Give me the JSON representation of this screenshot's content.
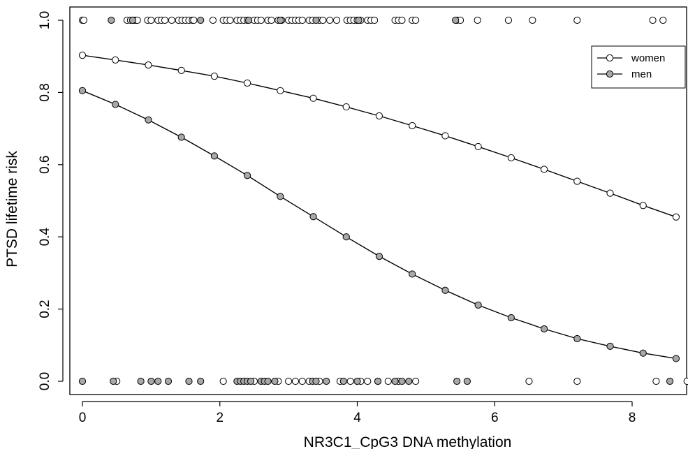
{
  "chart_data": {
    "type": "scatter",
    "title": "",
    "xlabel": "NR3C1_CpG3 DNA methylation",
    "ylabel": "PTSD lifetime risk",
    "xlim": [
      -0.3,
      8.8
    ],
    "ylim": [
      0,
      1
    ],
    "x_ticks": [
      "0",
      "2",
      "4",
      "6",
      "8"
    ],
    "y_ticks": [
      "0.0",
      "0.2",
      "0.4",
      "0.6",
      "0.8",
      "1.0"
    ],
    "grid": false,
    "legend_position": "top-right",
    "legend": [
      {
        "label": "women",
        "fill": "#ffffff"
      },
      {
        "label": "men",
        "fill": "#a8a8a8"
      }
    ],
    "fitted_curves": [
      {
        "name": "women",
        "fill": "#ffffff",
        "x": [
          0,
          0.48,
          0.96,
          1.44,
          1.92,
          2.4,
          2.88,
          3.36,
          3.84,
          4.32,
          4.8,
          5.28,
          5.76,
          6.24,
          6.72,
          7.2,
          7.68,
          8.16,
          8.64
        ],
        "y": [
          0.903,
          0.89,
          0.876,
          0.861,
          0.845,
          0.826,
          0.805,
          0.784,
          0.76,
          0.735,
          0.708,
          0.68,
          0.65,
          0.619,
          0.587,
          0.554,
          0.521,
          0.487,
          0.455
        ]
      },
      {
        "name": "men",
        "fill": "#a8a8a8",
        "x": [
          0,
          0.48,
          0.96,
          1.44,
          1.92,
          2.4,
          2.88,
          3.36,
          3.84,
          4.32,
          4.8,
          5.28,
          5.76,
          6.24,
          6.72,
          7.2,
          7.68,
          8.16,
          8.64
        ],
        "y": [
          0.805,
          0.767,
          0.724,
          0.676,
          0.624,
          0.57,
          0.512,
          0.456,
          0.4,
          0.346,
          0.297,
          0.252,
          0.211,
          0.176,
          0.145,
          0.118,
          0.097,
          0.078,
          0.063
        ]
      }
    ],
    "observations": [
      {
        "group": "women",
        "y": 1,
        "x": [
          0,
          0.02,
          0.65,
          0.7,
          0.75,
          0.78,
          0.8,
          0.95,
          1.0,
          1.1,
          1.15,
          1.2,
          1.3,
          1.4,
          1.45,
          1.5,
          1.55,
          1.6,
          1.62,
          1.9,
          2.05,
          2.1,
          2.15,
          2.25,
          2.3,
          2.35,
          2.4,
          2.5,
          2.55,
          2.6,
          2.7,
          2.75,
          2.85,
          2.9,
          3.0,
          3.05,
          3.1,
          3.15,
          3.2,
          3.3,
          3.35,
          3.45,
          3.5,
          3.6,
          3.7,
          3.85,
          3.9,
          3.95,
          4.0,
          4.05,
          4.15,
          4.2,
          4.25,
          4.55,
          4.6,
          4.65,
          4.8,
          4.85,
          5.45,
          5.5,
          5.75,
          6.2,
          6.55,
          7.2,
          8.3,
          8.45
        ]
      },
      {
        "group": "men",
        "y": 1,
        "x": [
          0.42,
          0.73,
          1.72,
          2.42,
          2.88,
          3.4,
          4.02,
          5.43
        ]
      },
      {
        "group": "women",
        "y": 0,
        "x": [
          0.5,
          2.05,
          2.5,
          2.85,
          3.0,
          3.1,
          3.2,
          3.3,
          3.45,
          3.75,
          3.9,
          4.05,
          4.15,
          4.3,
          4.45,
          4.6,
          4.85,
          6.5,
          7.2,
          8.35,
          8.8
        ]
      },
      {
        "group": "men",
        "y": 0,
        "x": [
          0,
          0.45,
          0.85,
          1.0,
          1.1,
          1.25,
          1.55,
          1.72,
          2.25,
          2.3,
          2.35,
          2.4,
          2.45,
          2.6,
          2.65,
          2.7,
          2.8,
          3.35,
          3.4,
          3.55,
          3.8,
          4.0,
          4.3,
          4.55,
          4.65,
          4.75,
          5.45,
          5.6,
          8.55
        ]
      }
    ]
  }
}
